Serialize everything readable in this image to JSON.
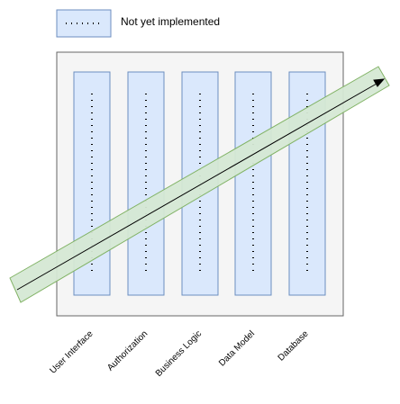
{
  "legend": {
    "label": "Not yet implemented"
  },
  "layers": [
    {
      "label": "User Interface"
    },
    {
      "label": "Authorization"
    },
    {
      "label": "Business Logic"
    },
    {
      "label": "Data Model"
    },
    {
      "label": "Database"
    }
  ],
  "colors": {
    "column_fill": "#dae8fc",
    "column_stroke": "#6c8ebf",
    "container_fill": "#f5f5f5",
    "container_stroke": "#666666",
    "band_fill": "#d5e8d4",
    "band_stroke": "#82b366",
    "arrow": "#000000"
  }
}
